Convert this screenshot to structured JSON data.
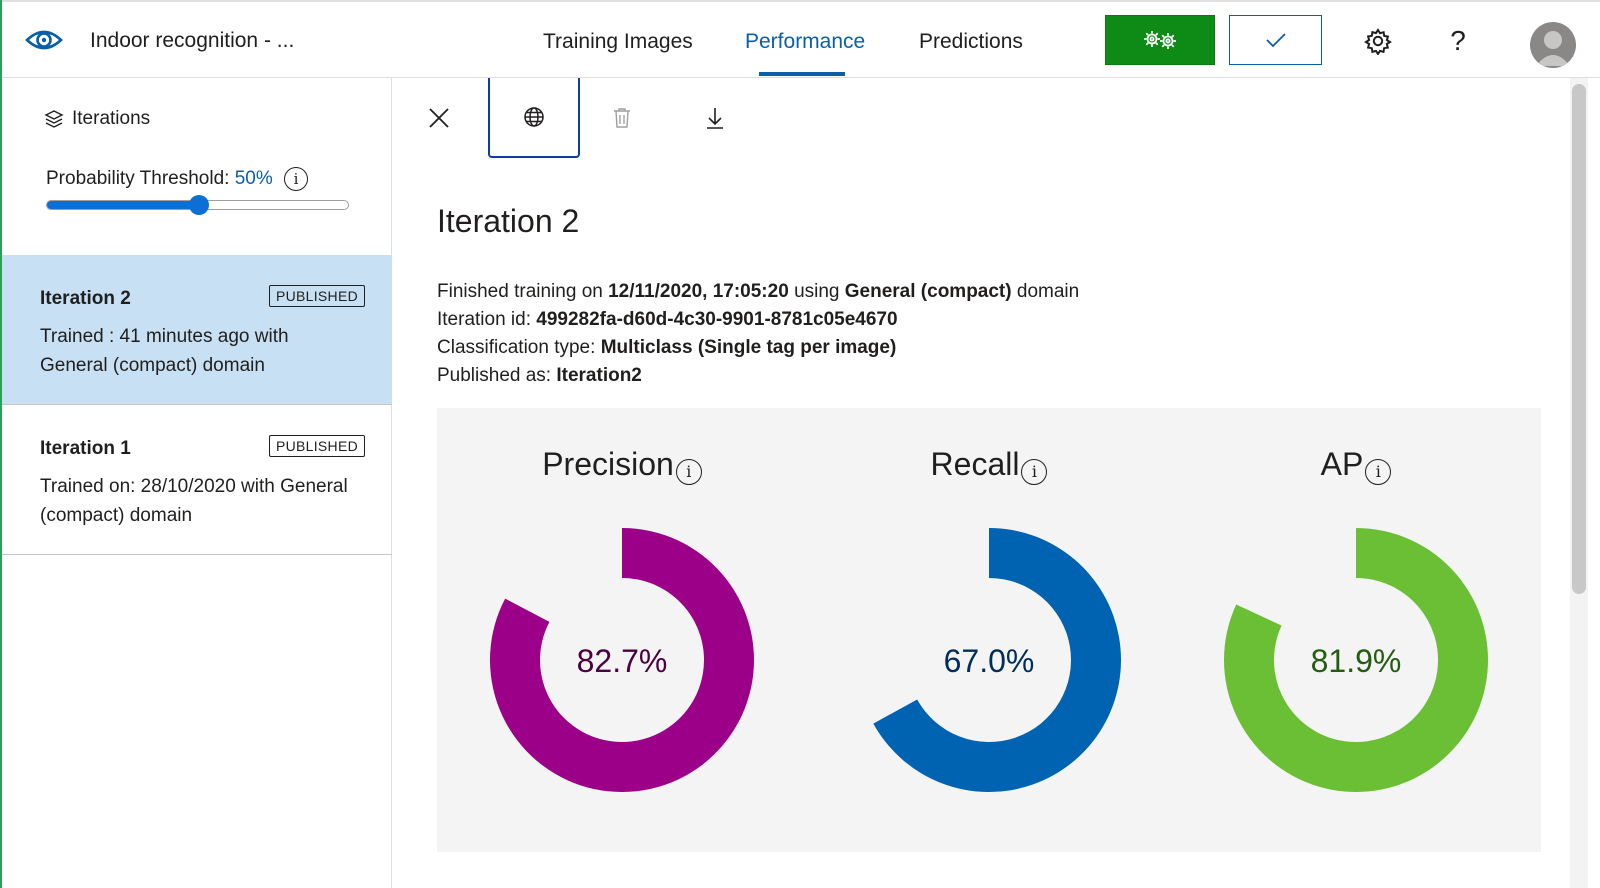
{
  "header": {
    "project_title": "Indoor recognition - ...",
    "tabs": [
      {
        "label": "Training Images",
        "active": false
      },
      {
        "label": "Performance",
        "active": true
      },
      {
        "label": "Predictions",
        "active": false
      }
    ],
    "help_label": "?",
    "colors": {
      "accent": "#0b5ea8",
      "train": "#0e8a16"
    }
  },
  "sidebar": {
    "iterations_label": "Iterations",
    "threshold_label": "Probability Threshold:",
    "threshold_value": "50%",
    "threshold_fraction": 0.5,
    "iterations": [
      {
        "name": "Iteration 2",
        "badge": "PUBLISHED",
        "description": "Trained : 41 minutes ago with General (compact) domain",
        "selected": true
      },
      {
        "name": "Iteration 1",
        "badge": "PUBLISHED",
        "description": "Trained on: 28/10/2020 with General (compact) domain",
        "selected": false
      }
    ]
  },
  "main": {
    "title": "Iteration 2",
    "details": {
      "finished_prefix": "Finished training on",
      "finished_date": "12/11/2020, 17:05:20",
      "using": "using",
      "domain": "General (compact)",
      "domain_suffix": "domain",
      "id_label": "Iteration id:",
      "id_value": "499282fa-d60d-4c30-9901-8781c05e4670",
      "type_label": "Classification type:",
      "type_value": "Multiclass (Single tag per image)",
      "published_label": "Published as:",
      "published_value": "Iteration2"
    },
    "metrics": [
      {
        "label": "Precision",
        "value_text": "82.7%",
        "value": 82.7,
        "color": "#9c0089",
        "text_color": "#4b0041"
      },
      {
        "label": "Recall",
        "value_text": "67.0%",
        "value": 67.0,
        "color": "#0063b1",
        "text_color": "#002e5c"
      },
      {
        "label": "AP",
        "value_text": "81.9%",
        "value": 81.9,
        "color": "#6bbf35",
        "text_color": "#245c10"
      }
    ]
  }
}
